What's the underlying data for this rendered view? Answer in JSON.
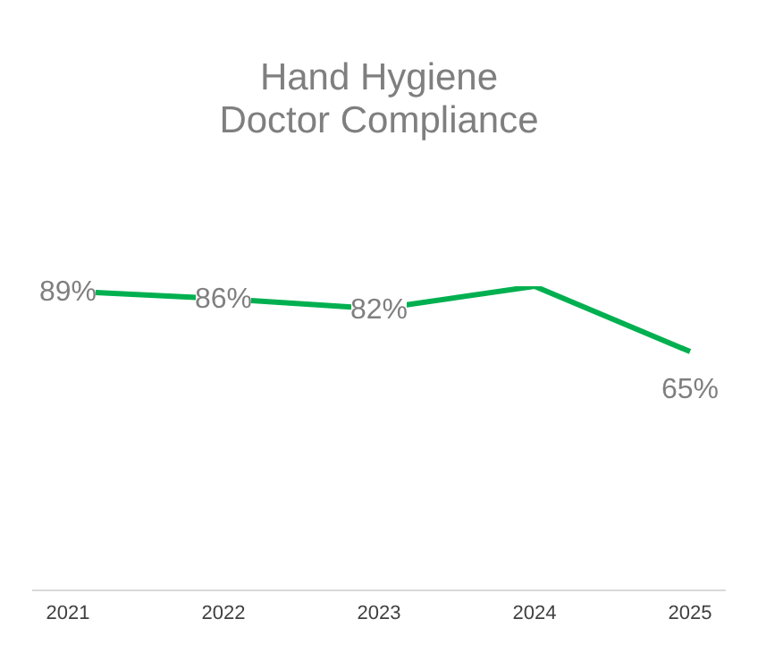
{
  "chart_data": {
    "type": "line",
    "title": "Hand Hygiene\nDoctor Compliance",
    "categories": [
      "2021",
      "2022",
      "2023",
      "2024",
      "2025"
    ],
    "series": [
      {
        "color": "#00b050",
        "values": [
          89,
          86,
          82,
          91,
          65
        ],
        "value_labels": [
          "89%",
          "86%",
          "82%",
          null,
          "65%"
        ]
      }
    ],
    "line_style": "solid",
    "tick_labels": "x"
  }
}
